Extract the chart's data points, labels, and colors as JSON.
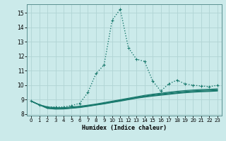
{
  "xlabel": "Humidex (Indice chaleur)",
  "xlim": [
    -0.5,
    23.5
  ],
  "ylim": [
    7.9,
    15.6
  ],
  "yticks": [
    8,
    9,
    10,
    11,
    12,
    13,
    14,
    15
  ],
  "xticks": [
    0,
    1,
    2,
    3,
    4,
    5,
    6,
    7,
    8,
    9,
    10,
    11,
    12,
    13,
    14,
    15,
    16,
    17,
    18,
    19,
    20,
    21,
    22,
    23
  ],
  "bg_color": "#cbeaea",
  "grid_color": "#b0d4d4",
  "line_color": "#1a7a6e",
  "dotted_line": {
    "x": [
      0,
      1,
      2,
      3,
      4,
      5,
      6,
      7,
      8,
      9,
      10,
      11,
      12,
      13,
      14,
      15,
      16,
      17,
      18,
      19,
      20,
      21,
      22,
      23
    ],
    "y": [
      8.9,
      8.65,
      8.5,
      8.5,
      8.5,
      8.6,
      8.75,
      9.5,
      10.8,
      11.4,
      14.5,
      15.25,
      12.6,
      11.8,
      11.65,
      10.3,
      9.6,
      10.1,
      10.35,
      10.1,
      10.0,
      9.95,
      9.9,
      10.0
    ]
  },
  "solid_lines": [
    [
      8.9,
      8.65,
      8.5,
      8.45,
      8.45,
      8.5,
      8.55,
      8.62,
      8.7,
      8.8,
      8.9,
      9.0,
      9.1,
      9.2,
      9.3,
      9.38,
      9.45,
      9.52,
      9.58,
      9.63,
      9.67,
      9.7,
      9.72,
      9.75
    ],
    [
      8.9,
      8.65,
      8.45,
      8.4,
      8.4,
      8.45,
      8.5,
      8.58,
      8.67,
      8.76,
      8.86,
      8.96,
      9.06,
      9.16,
      9.25,
      9.33,
      9.4,
      9.46,
      9.52,
      9.57,
      9.61,
      9.64,
      9.66,
      9.69
    ],
    [
      8.9,
      8.65,
      8.42,
      8.37,
      8.38,
      8.43,
      8.48,
      8.56,
      8.65,
      8.73,
      8.83,
      8.93,
      9.03,
      9.13,
      9.21,
      9.29,
      9.35,
      9.41,
      9.47,
      9.52,
      9.56,
      9.59,
      9.61,
      9.64
    ],
    [
      8.9,
      8.65,
      8.4,
      8.35,
      8.36,
      8.41,
      8.46,
      8.54,
      8.63,
      8.71,
      8.81,
      8.9,
      9.0,
      9.1,
      9.18,
      9.25,
      9.31,
      9.37,
      9.43,
      9.48,
      9.52,
      9.55,
      9.57,
      9.6
    ]
  ]
}
